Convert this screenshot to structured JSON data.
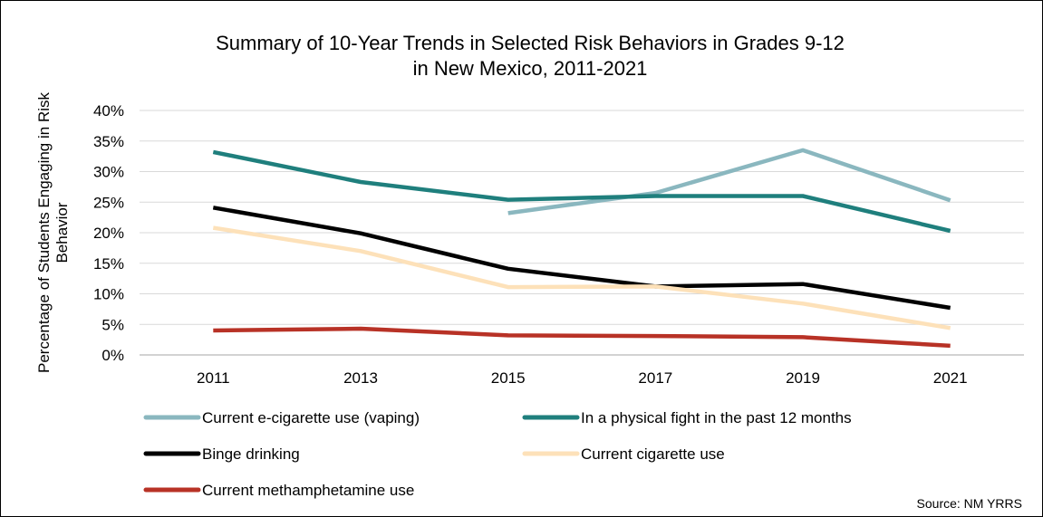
{
  "chart_data": {
    "type": "line",
    "title_lines": [
      "Summary of 10-Year Trends in Selected Risk Behaviors in Grades 9-12",
      "in New Mexico, 2011-2021"
    ],
    "ylabel_lines": [
      "Percentage of Students Engaging in Risk",
      "Behavior"
    ],
    "xlabel": "",
    "categories": [
      "2011",
      "2013",
      "2015",
      "2017",
      "2019",
      "2021"
    ],
    "ylim": [
      0,
      40
    ],
    "yticks": [
      0,
      5,
      10,
      15,
      20,
      25,
      30,
      35,
      40
    ],
    "ytick_labels": [
      "0%",
      "5%",
      "10%",
      "15%",
      "20%",
      "25%",
      "30%",
      "35%",
      "40%"
    ],
    "grid": "horizontal",
    "legend_position": "bottom",
    "series": [
      {
        "name": "Current e-cigarette use (vaping)",
        "color": "#8ab7bf",
        "values": [
          null,
          null,
          23.2,
          26.5,
          33.5,
          25.3
        ]
      },
      {
        "name": "In a physical fight in the past 12 months",
        "color": "#1f7f7d",
        "values": [
          33.2,
          28.3,
          25.4,
          26.0,
          26.0,
          20.3
        ]
      },
      {
        "name": "Binge drinking",
        "color": "#000000",
        "values": [
          24.1,
          19.9,
          14.1,
          11.2,
          11.6,
          7.7
        ]
      },
      {
        "name": "Current cigarette use",
        "color": "#fde1b9",
        "values": [
          20.8,
          17.0,
          11.1,
          11.2,
          8.4,
          4.4
        ]
      },
      {
        "name": "Current methamphetamine use",
        "color": "#b83226",
        "values": [
          4.0,
          4.3,
          3.2,
          3.1,
          2.9,
          1.5
        ]
      }
    ],
    "source_note": "Source: NM YRRS"
  }
}
